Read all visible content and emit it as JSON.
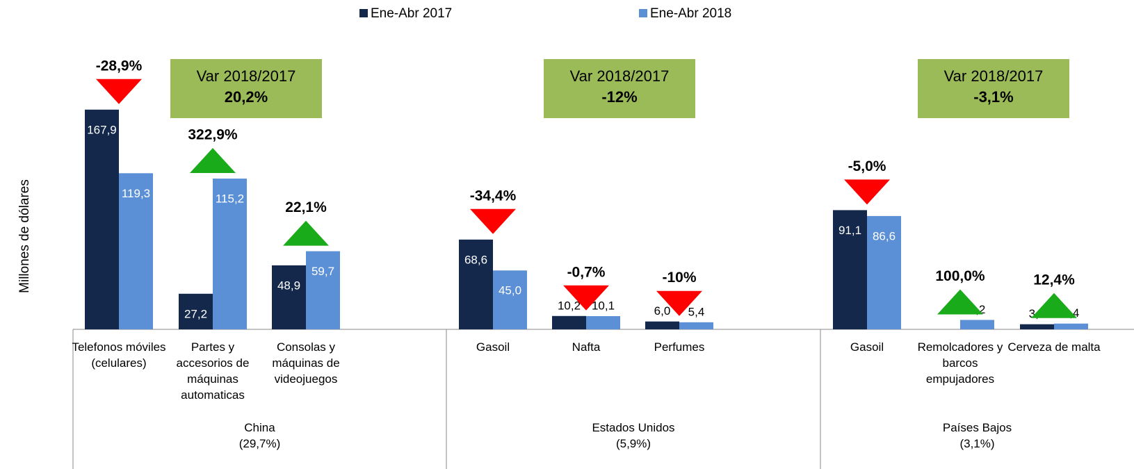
{
  "chart_data": {
    "type": "bar",
    "ylabel": "Millones de dólares",
    "ylim": [
      0,
      240
    ],
    "series": [
      {
        "name": "Ene-Abr 2017",
        "color": "#14284b",
        "values": [
          167.9,
          27.2,
          48.9,
          68.6,
          10.2,
          6.0,
          91.1,
          null,
          3.9
        ],
        "value_labels": [
          "167,9",
          "27,2",
          "48,9",
          "68,6",
          "10,2",
          "6,0",
          "91,1",
          null,
          "3,9"
        ]
      },
      {
        "name": "Ene-Abr 2018",
        "color": "#5b8fd6",
        "values": [
          119.3,
          115.2,
          59.7,
          45.0,
          10.1,
          5.4,
          86.6,
          7.2,
          4.4
        ],
        "value_labels": [
          "119,3",
          "115,2",
          "59,7",
          "45,0",
          "10,1",
          "5,4",
          "86,6",
          "7,2",
          "4,4"
        ]
      }
    ],
    "changes": {
      "values": [
        -28.9,
        322.9,
        22.1,
        -34.4,
        -0.7,
        -10,
        -5.0,
        100.0,
        12.4
      ],
      "value_labels": [
        "-28,9%",
        "322,9%",
        "22,1%",
        "-34,4%",
        "-0,7%",
        "-10%",
        "-5,0%",
        "100,0%",
        "12,4%"
      ],
      "up_color": "#1aab1a",
      "down_color": "#ff0000"
    },
    "groups": [
      {
        "name": "China",
        "share": "(29,7%)",
        "variation": {
          "title": "Var 2018/2017",
          "value": 20.2,
          "label": "20,2%"
        },
        "categories": [
          "Telefonos móviles (celulares)",
          "Partes y accesorios de máquinas automaticas",
          "Consolas y máquinas de videojuegos"
        ]
      },
      {
        "name": "Estados Unidos",
        "share": "(5,9%)",
        "variation": {
          "title": "Var 2018/2017",
          "value": -12,
          "label": "-12%"
        },
        "categories": [
          "Gasoil",
          "Nafta",
          "Perfumes"
        ]
      },
      {
        "name": "Países Bajos",
        "share": "(3,1%)",
        "variation": {
          "title": "Var 2018/2017",
          "value": -3.1,
          "label": "-3,1%"
        },
        "categories": [
          "Gasoil",
          "Remolcadores y barcos empujadores",
          "Cerveza de malta"
        ]
      }
    ],
    "variation_color": "#9bbb59"
  }
}
